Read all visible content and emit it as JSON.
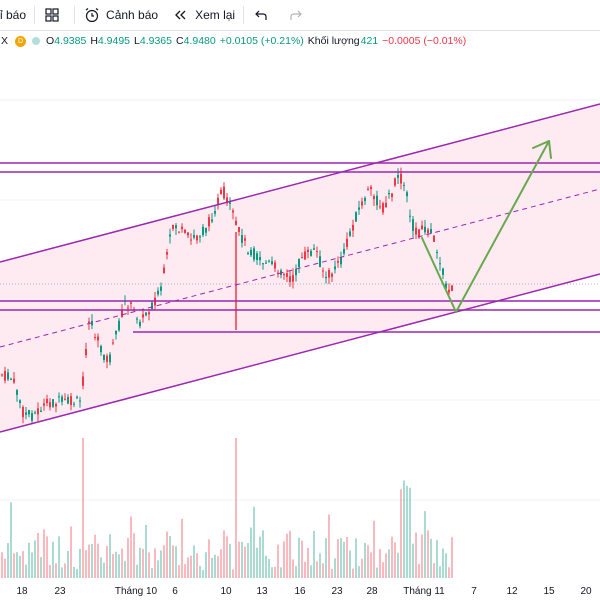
{
  "toolbar": {
    "report_label": "ỉ báo",
    "alert_label": "Cảnh báo",
    "replay_label": "Xem lại"
  },
  "ohlc": {
    "symbol_tail": "X",
    "badge": "D",
    "o_label": "O",
    "o_value": "4.9385",
    "h_label": "H",
    "h_value": "4.9495",
    "l_label": "L",
    "l_value": "4.9365",
    "c_label": "C",
    "c_value": "4.9480",
    "change": "+0.0105 (+0.21%)",
    "volume_label": "Khối lượng",
    "volume_value": "421",
    "volume_change": "−0.0005 (−0.01%)"
  },
  "xaxis": {
    "labels": [
      "18",
      "23",
      "Tháng 10",
      "6",
      "10",
      "13",
      "16",
      "23",
      "28",
      "Tháng 11",
      "7",
      "12",
      "15",
      "20"
    ]
  },
  "colors": {
    "up": "#089981",
    "down": "#f23645",
    "channel": "#9c27b0",
    "arrow": "#6aa84f",
    "fill": "#fce4ec"
  }
}
